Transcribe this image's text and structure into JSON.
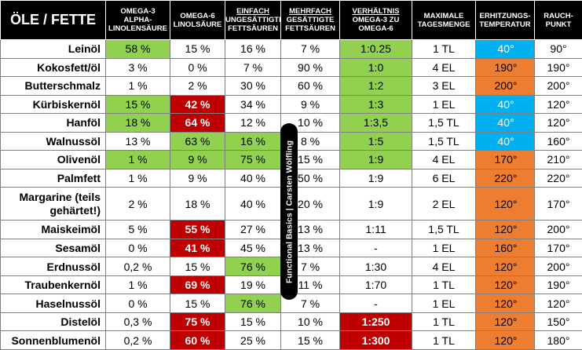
{
  "header": {
    "title": "ÖLE / FETTE",
    "columns": [
      {
        "lines": [
          "OMEGA-3",
          "ALPHA-",
          "LINOLENSÄURE"
        ],
        "underline": false
      },
      {
        "lines": [
          "OMEGA-6",
          "LINOLSÄURE"
        ],
        "underline": false
      },
      {
        "lines": [
          "EINFACH",
          "UNGESÄTTIGTE",
          "FETTSÄUREN"
        ],
        "underline": true
      },
      {
        "lines": [
          "MEHRFACH",
          "GESÄTTIGTE",
          "FETTSÄUREN"
        ],
        "underline": true
      },
      {
        "lines": [
          "VERHÄLTNIS",
          "OMEGA-3 ZU",
          "OMEGA-6"
        ],
        "underline": true
      },
      {
        "lines": [
          "MAXIMALE",
          "TAGESMENGE"
        ],
        "underline": false
      },
      {
        "lines": [
          "ERHITZUNGS-",
          "TEMPERATUR"
        ],
        "underline": false
      },
      {
        "lines": [
          "RAUCH-",
          "PUNKT"
        ],
        "underline": false
      }
    ]
  },
  "rows": [
    {
      "name": "Leinöl",
      "omega3": "58 %",
      "omega6": "15 %",
      "einfach": "16 %",
      "mehrfach": "7 %",
      "ratio": "1:0.25",
      "menge": "1 TL",
      "erhitzung": "40°",
      "rauch": "90°"
    },
    {
      "name": "Kokosfett/öl",
      "omega3": "3 %",
      "omega6": "0 %",
      "einfach": "7 %",
      "mehrfach": "90 %",
      "ratio": "1:0",
      "menge": "4 EL",
      "erhitzung": "190°",
      "rauch": "190°"
    },
    {
      "name": "Butterschmalz",
      "omega3": "1 %",
      "omega6": "2 %",
      "einfach": "30 %",
      "mehrfach": "60 %",
      "ratio": "1:2",
      "menge": "3 EL",
      "erhitzung": "200°",
      "rauch": "200°"
    },
    {
      "name": "Kürbiskernöl",
      "omega3": "15 %",
      "omega6": "42 %",
      "einfach": "34 %",
      "mehrfach": "9 %",
      "ratio": "1:3",
      "menge": "1 EL",
      "erhitzung": "40°",
      "rauch": "120°"
    },
    {
      "name": "Hanföl",
      "omega3": "18 %",
      "omega6": "64 %",
      "einfach": "12 %",
      "mehrfach": "10 %",
      "ratio": "1:3,5",
      "menge": "1,5 TL",
      "erhitzung": "40°",
      "rauch": "120°"
    },
    {
      "name": "Walnussöl",
      "omega3": "13 %",
      "omega6": "63 %",
      "einfach": "16 %",
      "mehrfach": "8 %",
      "ratio": "1:5",
      "menge": "1,5 TL",
      "erhitzung": "40°",
      "rauch": "160°"
    },
    {
      "name": "Olivenöl",
      "omega3": "1 %",
      "omega6": "9 %",
      "einfach": "75 %",
      "mehrfach": "15 %",
      "ratio": "1:9",
      "menge": "4 EL",
      "erhitzung": "170°",
      "rauch": "210°"
    },
    {
      "name": "Palmfett",
      "omega3": "1 %",
      "omega6": "9 %",
      "einfach": "40 %",
      "mehrfach": "50 %",
      "ratio": "1:9",
      "menge": "6 EL",
      "erhitzung": "220°",
      "rauch": "220°"
    },
    {
      "name_lines": [
        "Margarine (teils",
        "gehärtet!)"
      ],
      "omega3": "2 %",
      "omega6": "18 %",
      "einfach": "40 %",
      "mehrfach": "20 %",
      "ratio": "1:9",
      "menge": "2 EL",
      "erhitzung": "120°",
      "rauch": "170°"
    },
    {
      "name": "Maiskeimöl",
      "omega3": "5 %",
      "omega6": "55 %",
      "einfach": "27 %",
      "mehrfach": "13 %",
      "ratio": "1:11",
      "menge": "1,5 TL",
      "erhitzung": "120°",
      "rauch": "200°"
    },
    {
      "name": "Sesamöl",
      "omega3": "0 %",
      "omega6": "41 %",
      "einfach": "45 %",
      "mehrfach": "13 %",
      "ratio": "-",
      "menge": "1 EL",
      "erhitzung": "160°",
      "rauch": "170°"
    },
    {
      "name": "Erdnussöl",
      "omega3": "0,2 %",
      "omega6": "15 %",
      "einfach": "76 %",
      "mehrfach": "7 %",
      "ratio": "1:30",
      "menge": "4 EL",
      "erhitzung": "120°",
      "rauch": "200°"
    },
    {
      "name": "Traubenkernöl",
      "omega3": "1 %",
      "omega6": "69 %",
      "einfach": "19 %",
      "mehrfach": "11 %",
      "ratio": "1:70",
      "menge": "1 TL",
      "erhitzung": "120°",
      "rauch": "190°"
    },
    {
      "name": "Haselnussöl",
      "omega3": "0 %",
      "omega6": "15 %",
      "einfach": "76 %",
      "mehrfach": "7 %",
      "ratio": "-",
      "menge": "1 EL",
      "erhitzung": "120°",
      "rauch": "120°"
    },
    {
      "name": "Distelöl",
      "omega3": "0,3 %",
      "omega6": "75 %",
      "einfach": "15 %",
      "mehrfach": "10 %",
      "ratio": "1:250",
      "menge": "1 TL",
      "erhitzung": "120°",
      "rauch": "150°"
    },
    {
      "name": "Sonnenblumenöl",
      "omega3": "0,2 %",
      "omega6": "60 %",
      "einfach": "25 %",
      "mehrfach": "15 %",
      "ratio": "1:300",
      "menge": "1 TL",
      "erhitzung": "120°",
      "rauch": "180°"
    }
  ],
  "highlights": {
    "omega3": [
      "g",
      "w",
      "w",
      "g",
      "g",
      "w",
      "g",
      "w",
      "w",
      "w",
      "w",
      "w",
      "w",
      "w",
      "w",
      "w"
    ],
    "omega6": [
      "w",
      "w",
      "w",
      "r",
      "r",
      "g",
      "g",
      "w",
      "w",
      "r",
      "r",
      "w",
      "r",
      "w",
      "r",
      "r"
    ],
    "einfach": [
      "w",
      "w",
      "w",
      "w",
      "w",
      "g",
      "g",
      "w",
      "w",
      "w",
      "w",
      "g",
      "w",
      "g",
      "w",
      "w"
    ],
    "ratio": [
      "g",
      "g",
      "g",
      "g",
      "g",
      "g",
      "g",
      "w",
      "w",
      "w",
      "w",
      "w",
      "w",
      "w",
      "r",
      "r"
    ],
    "erhitzung": [
      "b",
      "o",
      "o",
      "b",
      "b",
      "b",
      "o",
      "o",
      "o",
      "o",
      "o",
      "o",
      "o",
      "o",
      "o",
      "o"
    ]
  },
  "colors": {
    "green": "#92d050",
    "red": "#c00000",
    "orange": "#ed7d31",
    "blue": "#00b0f0",
    "header_bg": "#000000"
  },
  "watermark": "Functional Basics | Carsten Wölfling"
}
